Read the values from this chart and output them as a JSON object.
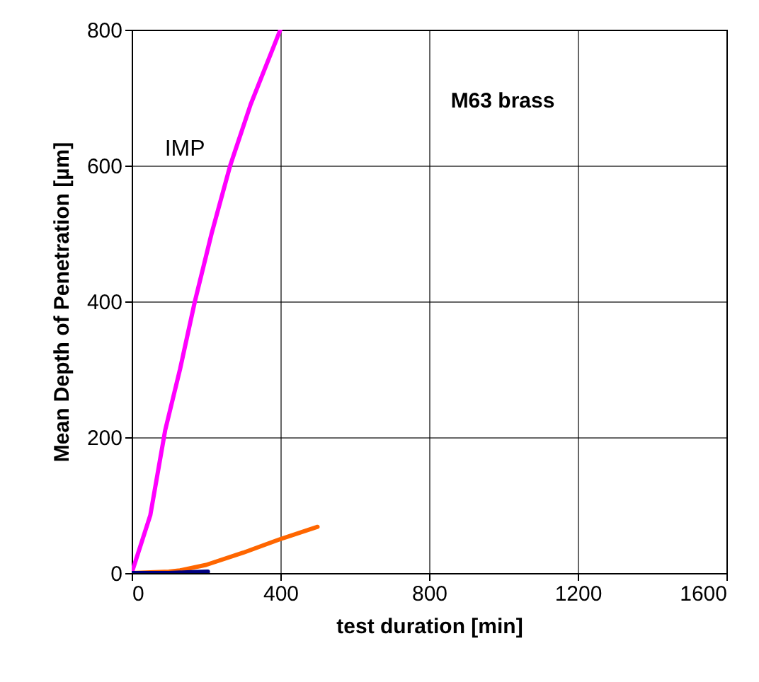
{
  "chart_data": {
    "type": "line",
    "xlabel": "test duration [min]",
    "ylabel": "Mean Depth of Penetration [µm]",
    "xlim": [
      0,
      1600
    ],
    "xticks": [
      0,
      400,
      800,
      1200,
      1600
    ],
    "ylim": [
      0,
      800
    ],
    "yticks": [
      0,
      200,
      400,
      600,
      800
    ],
    "grid": true,
    "legend": false,
    "annotations": [
      "M63 brass"
    ],
    "series": [
      {
        "name": "IMP",
        "color": "#ff00ff",
        "x": [
          0,
          50,
          90,
          130,
          170,
          215,
          265,
          320,
          400
        ],
        "values": [
          0,
          85,
          210,
          300,
          400,
          500,
          600,
          690,
          800
        ]
      },
      {
        "color": "#ff6600",
        "x": [
          0,
          100,
          130,
          200,
          300,
          400,
          500
        ],
        "values": [
          0,
          2,
          4,
          12,
          30,
          50,
          68
        ]
      },
      {
        "color": "#000080",
        "x": [
          0,
          100,
          150,
          205
        ],
        "values": [
          0,
          0,
          1,
          2
        ]
      }
    ]
  }
}
